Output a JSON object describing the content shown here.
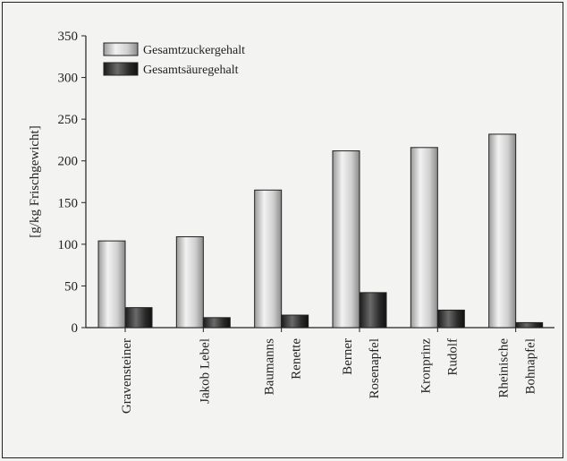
{
  "chart_data": {
    "type": "bar",
    "title": "",
    "ylabel": "[g/kg Frischgewicht]",
    "ylim": [
      0,
      350
    ],
    "yticks": [
      0,
      50,
      100,
      150,
      200,
      250,
      300,
      350
    ],
    "categories": [
      [
        "Gravensteiner"
      ],
      [
        "Jakob Lebel"
      ],
      [
        "Baumanns",
        "Renette"
      ],
      [
        "Berner",
        "Rosenapfel"
      ],
      [
        "Kronprinz",
        "Rudolf"
      ],
      [
        "Rheinische",
        "Bohnapfel"
      ]
    ],
    "series": [
      {
        "name": "Gesamtzuckergehalt",
        "values": [
          104,
          109,
          165,
          212,
          216,
          232
        ],
        "color": "#d8d8d8"
      },
      {
        "name": "Gesamtsäuregehalt",
        "values": [
          24,
          12,
          15,
          42,
          21,
          6
        ],
        "color": "#3a3a3a"
      }
    ],
    "legend_position": "top-left",
    "grid": false
  }
}
